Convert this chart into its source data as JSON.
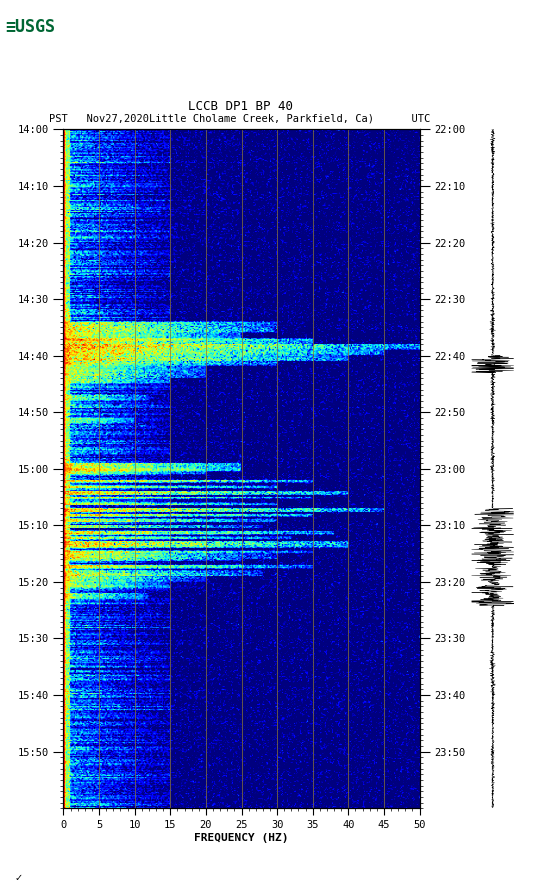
{
  "title_line1": "LCCB DP1 BP 40",
  "title_line2": "PST   Nov27,2020Little Cholame Creek, Parkfield, Ca)      UTC",
  "xlabel": "FREQUENCY (HZ)",
  "freq_min": 0,
  "freq_max": 50,
  "freq_ticks": [
    0,
    5,
    10,
    15,
    20,
    25,
    30,
    35,
    40,
    45,
    50
  ],
  "time_labels_left": [
    "14:00",
    "14:10",
    "14:20",
    "14:30",
    "14:40",
    "14:50",
    "15:00",
    "15:10",
    "15:20",
    "15:30",
    "15:40",
    "15:50"
  ],
  "time_labels_right": [
    "22:00",
    "22:10",
    "22:20",
    "22:30",
    "22:40",
    "22:50",
    "23:00",
    "23:10",
    "23:20",
    "23:30",
    "23:40",
    "23:50"
  ],
  "vertical_lines_freq": [
    5,
    10,
    15,
    20,
    25,
    30,
    35,
    40,
    45
  ],
  "vertical_line_color": "#8B7536",
  "background_color": "#ffffff",
  "usgs_green": "#006633",
  "fig_width": 5.52,
  "fig_height": 8.93,
  "n_time": 720,
  "n_freq": 300,
  "duration_min": 120,
  "seed": 42
}
